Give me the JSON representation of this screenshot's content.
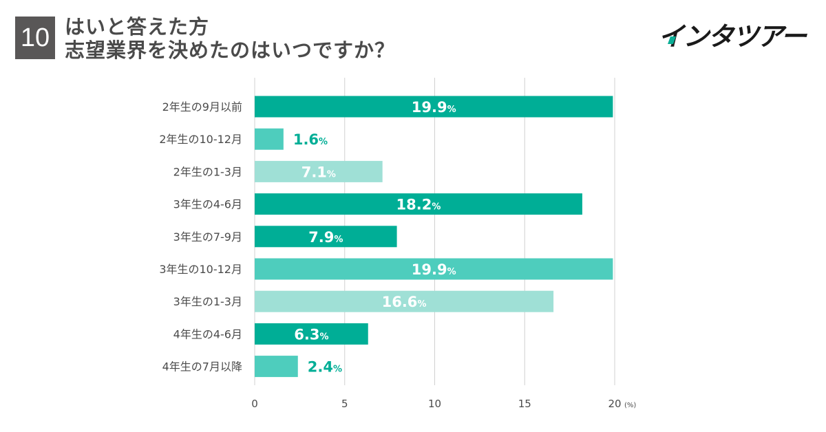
{
  "header": {
    "question_number": "10",
    "title_line1": "はいと答えた方",
    "title_line2": "志望業界を決めたのはいつですか？"
  },
  "brand": {
    "logo_text": "インタツアー"
  },
  "colors": {
    "dark": "#00ae96",
    "medium": "#4ecdbd",
    "light": "#9fe0d6",
    "label_on_light": "#ffffff",
    "label_outside": "#00ae96",
    "grid": "#d0d0d0",
    "text": "#4a4a4a"
  },
  "chart_data": {
    "type": "bar",
    "orientation": "horizontal",
    "title": "はいと答えた方 志望業界を決めたのはいつですか？",
    "categories": [
      "2年生の9月以前",
      "2年生の10-12月",
      "2年生の1-3月",
      "3年生の4-6月",
      "3年生の7-9月",
      "3年生の10-12月",
      "3年生の1-3月",
      "4年生の4-6月",
      "4年生の7月以降"
    ],
    "values": [
      19.9,
      1.6,
      7.1,
      18.2,
      7.9,
      19.9,
      16.6,
      6.3,
      2.4
    ],
    "value_labels": [
      "19.9",
      "1.6",
      "7.1",
      "18.2",
      "7.9",
      "19.9",
      "16.6",
      "6.3",
      "2.4"
    ],
    "value_suffix": "%",
    "bar_shades": [
      "dark",
      "medium",
      "light",
      "dark",
      "dark",
      "medium",
      "light",
      "dark",
      "medium"
    ],
    "xlim": [
      0,
      20
    ],
    "xticks": [
      0,
      5,
      10,
      15,
      20
    ],
    "xtick_labels": [
      "0",
      "5",
      "10",
      "15",
      "20"
    ],
    "xunit": "(%)",
    "grid": true
  }
}
